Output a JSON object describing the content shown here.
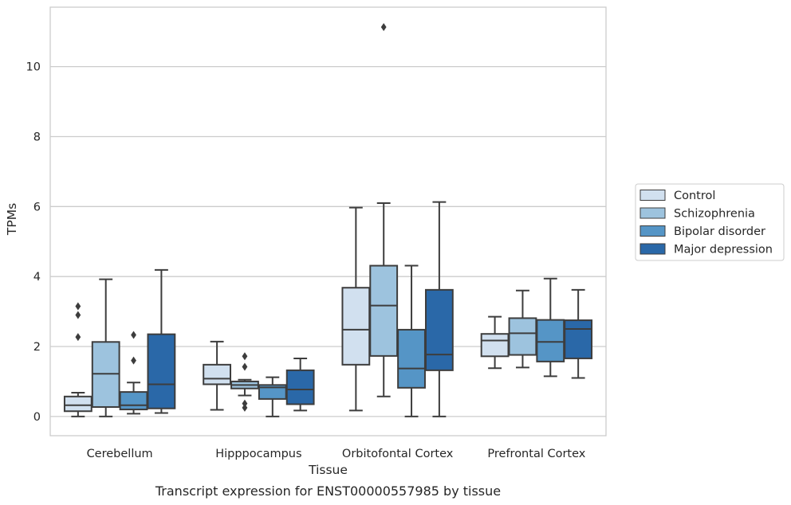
{
  "caption": "Transcript expression for ENST00000557985 by tissue",
  "chart_data": {
    "type": "box",
    "xlabel": "Tissue",
    "ylabel": "TPMs",
    "ylim": [
      -0.55,
      11.7
    ],
    "yticks": [
      0,
      2,
      4,
      6,
      8,
      10
    ],
    "grid": "horizontal",
    "legend_placement": "right",
    "categories": [
      "Cerebellum",
      "Hipppocampus",
      "Orbitofontal Cortex",
      "Prefrontal Cortex"
    ],
    "series": [
      {
        "name": "Control",
        "color": "#d1e0ef",
        "boxes": [
          {
            "whislo": 0.0,
            "q1": 0.15,
            "med": 0.32,
            "q3": 0.57,
            "whishi": 0.68,
            "fliers": [
              2.27,
              2.9,
              3.15
            ]
          },
          {
            "whislo": 0.19,
            "q1": 0.92,
            "med": 1.08,
            "q3": 1.48,
            "whishi": 2.14,
            "fliers": []
          },
          {
            "whislo": 0.17,
            "q1": 1.48,
            "med": 2.48,
            "q3": 3.68,
            "whishi": 5.97,
            "fliers": []
          },
          {
            "whislo": 1.38,
            "q1": 1.72,
            "med": 2.17,
            "q3": 2.36,
            "whishi": 2.85,
            "fliers": []
          }
        ]
      },
      {
        "name": "Schizophrenia",
        "color": "#9dc3de",
        "boxes": [
          {
            "whislo": 0.0,
            "q1": 0.27,
            "med": 1.22,
            "q3": 2.13,
            "whishi": 3.92,
            "fliers": []
          },
          {
            "whislo": 0.6,
            "q1": 0.8,
            "med": 0.9,
            "q3": 1.0,
            "whishi": 1.05,
            "fliers": [
              0.25,
              0.37,
              1.42,
              1.72
            ]
          },
          {
            "whislo": 0.57,
            "q1": 1.73,
            "med": 3.17,
            "q3": 4.31,
            "whishi": 6.1,
            "fliers": [
              11.13
            ]
          },
          {
            "whislo": 1.4,
            "q1": 1.76,
            "med": 2.38,
            "q3": 2.81,
            "whishi": 3.6,
            "fliers": []
          }
        ]
      },
      {
        "name": "Bipolar disorder",
        "color": "#5595c6",
        "boxes": [
          {
            "whislo": 0.08,
            "q1": 0.2,
            "med": 0.32,
            "q3": 0.7,
            "whishi": 0.97,
            "fliers": [
              1.6,
              2.33
            ]
          },
          {
            "whislo": 0.0,
            "q1": 0.5,
            "med": 0.83,
            "q3": 0.9,
            "whishi": 1.12,
            "fliers": []
          },
          {
            "whislo": 0.0,
            "q1": 0.82,
            "med": 1.37,
            "q3": 2.48,
            "whishi": 4.31,
            "fliers": []
          },
          {
            "whislo": 1.15,
            "q1": 1.57,
            "med": 2.13,
            "q3": 2.76,
            "whishi": 3.94,
            "fliers": []
          }
        ]
      },
      {
        "name": "Major depression",
        "color": "#2a68a8",
        "boxes": [
          {
            "whislo": 0.1,
            "q1": 0.23,
            "med": 0.92,
            "q3": 2.35,
            "whishi": 4.19,
            "fliers": []
          },
          {
            "whislo": 0.17,
            "q1": 0.35,
            "med": 0.77,
            "q3": 1.32,
            "whishi": 1.66,
            "fliers": []
          },
          {
            "whislo": 0.0,
            "q1": 1.32,
            "med": 1.77,
            "q3": 3.62,
            "whishi": 6.13,
            "fliers": []
          },
          {
            "whislo": 1.1,
            "q1": 1.66,
            "med": 2.5,
            "q3": 2.75,
            "whishi": 3.62,
            "fliers": []
          }
        ]
      }
    ]
  }
}
